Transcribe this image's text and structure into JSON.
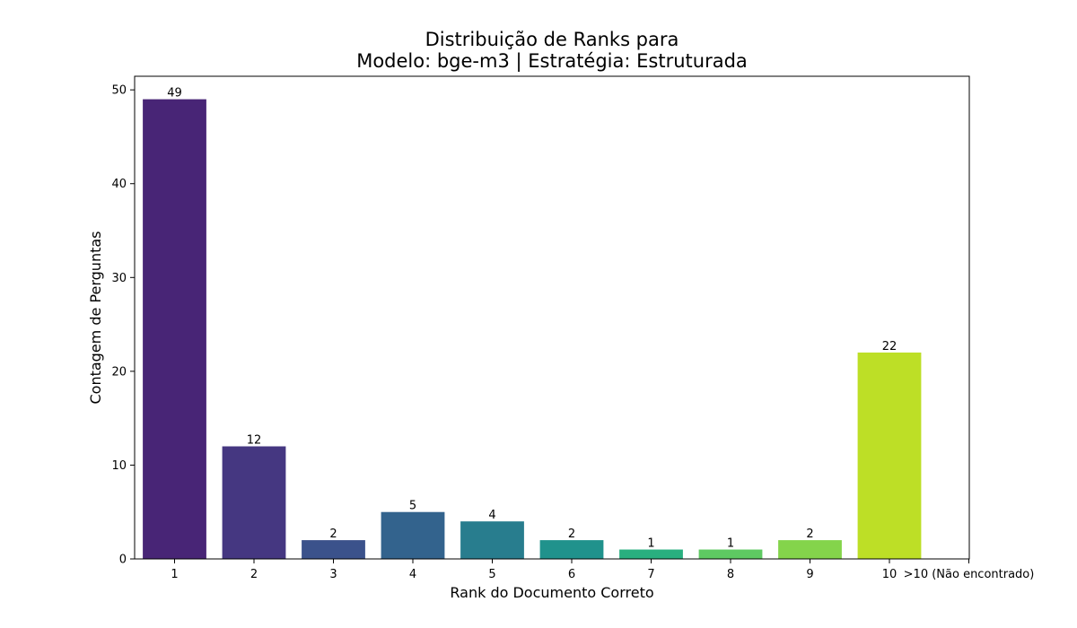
{
  "chart_data": {
    "type": "bar",
    "title_line1": "Distribuição de Ranks para",
    "title_line2": "Modelo: bge-m3 | Estratégia: Estruturada",
    "xlabel": "Rank do Documento Correto",
    "ylabel": "Contagem de Perguntas",
    "categories": [
      "1",
      "2",
      "3",
      "4",
      "5",
      "6",
      "7",
      "8",
      "9",
      "10",
      ">10 (Não encontrado)"
    ],
    "values": [
      49,
      12,
      2,
      5,
      4,
      2,
      1,
      1,
      2,
      22,
      null
    ],
    "data_labels": [
      "49",
      "12",
      "2",
      "5",
      "4",
      "2",
      "1",
      "1",
      "2",
      "22",
      ""
    ],
    "colors": [
      "#482576",
      "#453781",
      "#3b528b",
      "#33638d",
      "#287d8e",
      "#20928c",
      "#29af7f",
      "#5ec962",
      "#84d44b",
      "#bddf26",
      "#ffffff"
    ],
    "ylim": [
      0,
      51.45
    ],
    "yticks": [
      0,
      10,
      20,
      30,
      40,
      50
    ],
    "grid": false,
    "legend": "none"
  }
}
